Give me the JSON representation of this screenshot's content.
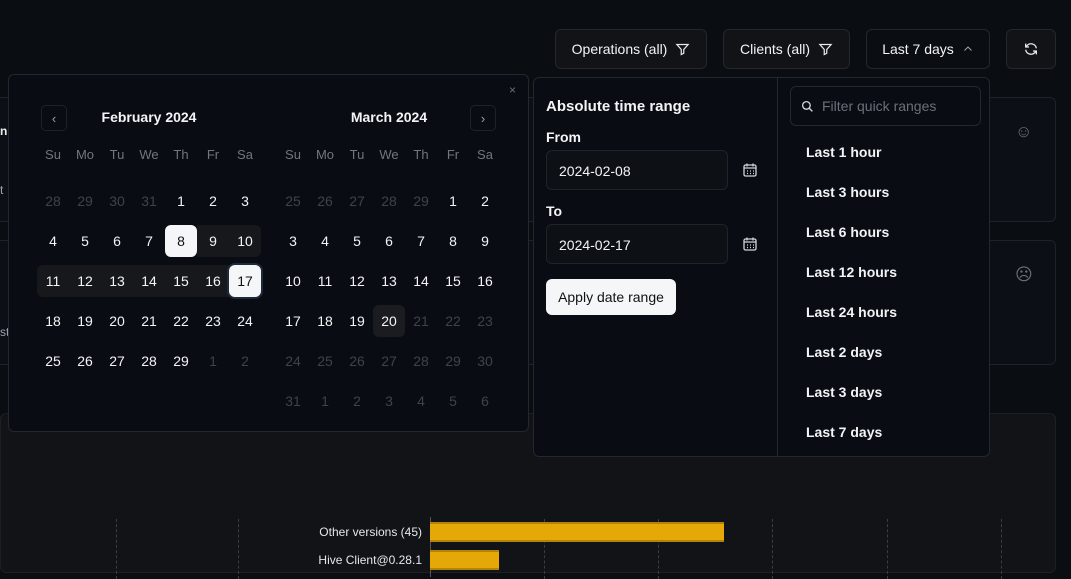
{
  "toolbar": {
    "operations": "Operations (all)",
    "clients": "Clients (all)",
    "range": "Last 7 days"
  },
  "background": {
    "frag1": "ni",
    "frag2": "t",
    "frag3": "st"
  },
  "calendar": {
    "months": [
      {
        "title": "February 2024",
        "days": [
          [
            "28",
            1
          ],
          [
            "29",
            1
          ],
          [
            "30",
            1
          ],
          [
            "31",
            1
          ],
          [
            "1"
          ],
          [
            "2"
          ],
          [
            "3"
          ],
          [
            "4"
          ],
          [
            "5"
          ],
          [
            "6"
          ],
          [
            "7"
          ],
          [
            "8",
            "sel"
          ],
          [
            "9",
            "rng"
          ],
          [
            "10",
            "rng last"
          ],
          [
            "11",
            "rng first"
          ],
          [
            "12",
            "rng"
          ],
          [
            "13",
            "rng"
          ],
          [
            "14",
            "rng"
          ],
          [
            "15",
            "rng"
          ],
          [
            "16",
            "rng"
          ],
          [
            "17",
            "sel ring"
          ],
          [
            "18"
          ],
          [
            "19"
          ],
          [
            "20"
          ],
          [
            "21"
          ],
          [
            "22"
          ],
          [
            "23"
          ],
          [
            "24"
          ],
          [
            "25"
          ],
          [
            "26"
          ],
          [
            "27"
          ],
          [
            "28"
          ],
          [
            "29"
          ],
          [
            "1",
            1
          ],
          [
            "2",
            1
          ]
        ]
      },
      {
        "title": "March 2024",
        "days": [
          [
            "25",
            1
          ],
          [
            "26",
            1
          ],
          [
            "27",
            1
          ],
          [
            "28",
            1
          ],
          [
            "29",
            1
          ],
          [
            "1"
          ],
          [
            "2"
          ],
          [
            "3"
          ],
          [
            "4"
          ],
          [
            "5"
          ],
          [
            "6"
          ],
          [
            "7"
          ],
          [
            "8"
          ],
          [
            "9"
          ],
          [
            "10"
          ],
          [
            "11"
          ],
          [
            "12"
          ],
          [
            "13"
          ],
          [
            "14"
          ],
          [
            "15"
          ],
          [
            "16"
          ],
          [
            "17"
          ],
          [
            "18"
          ],
          [
            "19"
          ],
          [
            "20",
            "today"
          ],
          [
            "21",
            1
          ],
          [
            "22",
            1
          ],
          [
            "23",
            1
          ],
          [
            "24",
            1
          ],
          [
            "25",
            1
          ],
          [
            "26",
            1
          ],
          [
            "27",
            1
          ],
          [
            "28",
            1
          ],
          [
            "29",
            1
          ],
          [
            "30",
            1
          ],
          [
            "31",
            1
          ],
          [
            "1",
            1
          ],
          [
            "2",
            1
          ],
          [
            "3",
            1
          ],
          [
            "4",
            1
          ],
          [
            "5",
            1
          ],
          [
            "6",
            1
          ]
        ]
      }
    ],
    "weekdays": [
      "Su",
      "Mo",
      "Tu",
      "We",
      "Th",
      "Fr",
      "Sa"
    ]
  },
  "absolute": {
    "title": "Absolute time range",
    "from_label": "From",
    "from": "2024-02-08",
    "to_label": "To",
    "to": "2024-02-17",
    "apply": "Apply date range"
  },
  "quick": {
    "placeholder": "Filter quick ranges",
    "items": [
      "Last 1 hour",
      "Last 3 hours",
      "Last 6 hours",
      "Last 12 hours",
      "Last 24 hours",
      "Last 2 days",
      "Last 3 days",
      "Last 7 days"
    ]
  },
  "chart": {
    "bars": [
      {
        "label": "Other versions (45)"
      },
      {
        "label": "Hive Client@0.28.1"
      }
    ]
  },
  "colors": {
    "bar": "#e5a809",
    "accent": "#f5f6f8"
  }
}
